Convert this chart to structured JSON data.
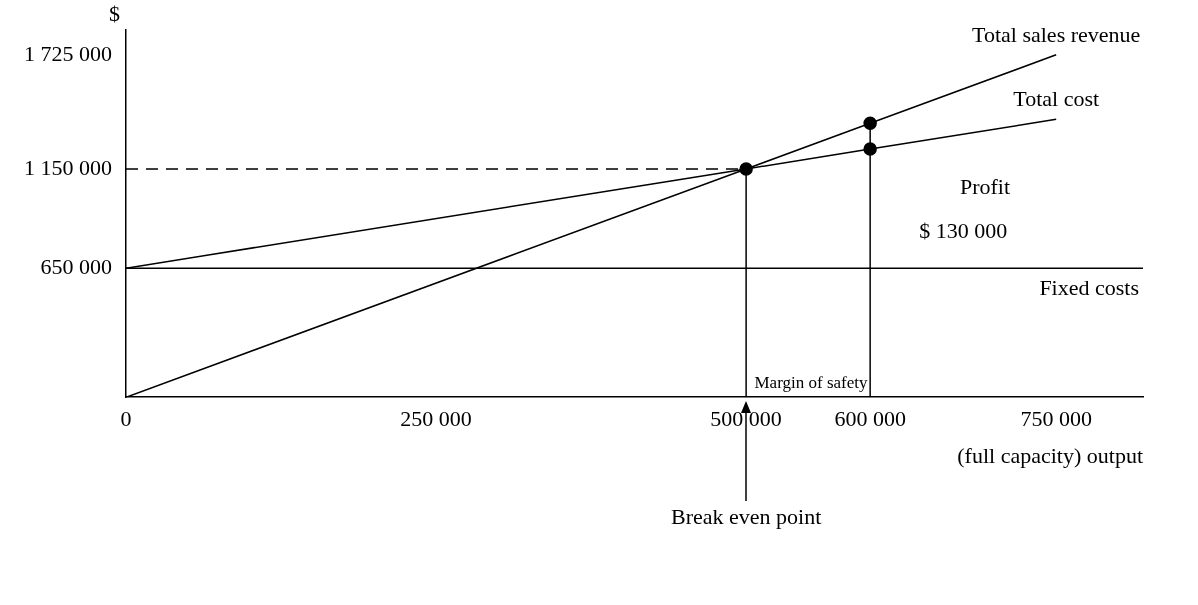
{
  "chart_data": {
    "type": "line",
    "xlabel": "(full capacity) output",
    "ylabel": "$",
    "xlim": [
      0,
      820000
    ],
    "ylim": [
      0,
      1850000
    ],
    "xticks": [
      {
        "value": 0,
        "label": "0"
      },
      {
        "value": 250000,
        "label": "250 000"
      },
      {
        "value": 500000,
        "label": "500 000"
      },
      {
        "value": 600000,
        "label": "600 000"
      },
      {
        "value": 750000,
        "label": "750 000"
      }
    ],
    "yticks": [
      {
        "value": 650000,
        "label": "650 000"
      },
      {
        "value": 1150000,
        "label": "1 150 000"
      },
      {
        "value": 1725000,
        "label": "1 725 000"
      }
    ],
    "grid": false,
    "legend": false,
    "series": [
      {
        "name": "Total sales revenue",
        "type": "line",
        "color": "#000000",
        "marker": "none",
        "x": [
          0,
          500000,
          600000,
          750000
        ],
        "values": [
          0,
          1150000,
          1380000,
          1725000
        ]
      },
      {
        "name": "Total cost",
        "type": "line",
        "color": "#000000",
        "marker": "none",
        "x": [
          0,
          500000,
          600000,
          750000
        ],
        "values": [
          650000,
          1150000,
          1250000,
          1400000
        ]
      },
      {
        "type": "line",
        "color": "#000000",
        "marker": "none",
        "line_style": "dashed",
        "x": [
          0,
          500000
        ],
        "values": [
          1150000,
          1150000
        ]
      },
      {
        "type": "line",
        "color": "#000000",
        "marker": "none",
        "x": [
          500000,
          500000
        ],
        "values": [
          0,
          1150000
        ]
      },
      {
        "type": "line",
        "color": "#000000",
        "marker": "none",
        "x": [
          600000,
          600000
        ],
        "values": [
          0,
          1380000
        ]
      },
      {
        "type": "scatter",
        "color": "#000000",
        "marker": "circle",
        "x": [
          500000,
          600000,
          600000
        ],
        "values": [
          1150000,
          1380000,
          1250000
        ]
      }
    ],
    "ref_lines": [
      {
        "axis": "y",
        "value": 650000,
        "label": "Fixed costs",
        "color": "#000000"
      }
    ],
    "annotations": [
      "Profit",
      "$ 130 000",
      "Margin of safety",
      {
        "text": "Break even point",
        "x": 500000,
        "y": 0
      }
    ]
  }
}
